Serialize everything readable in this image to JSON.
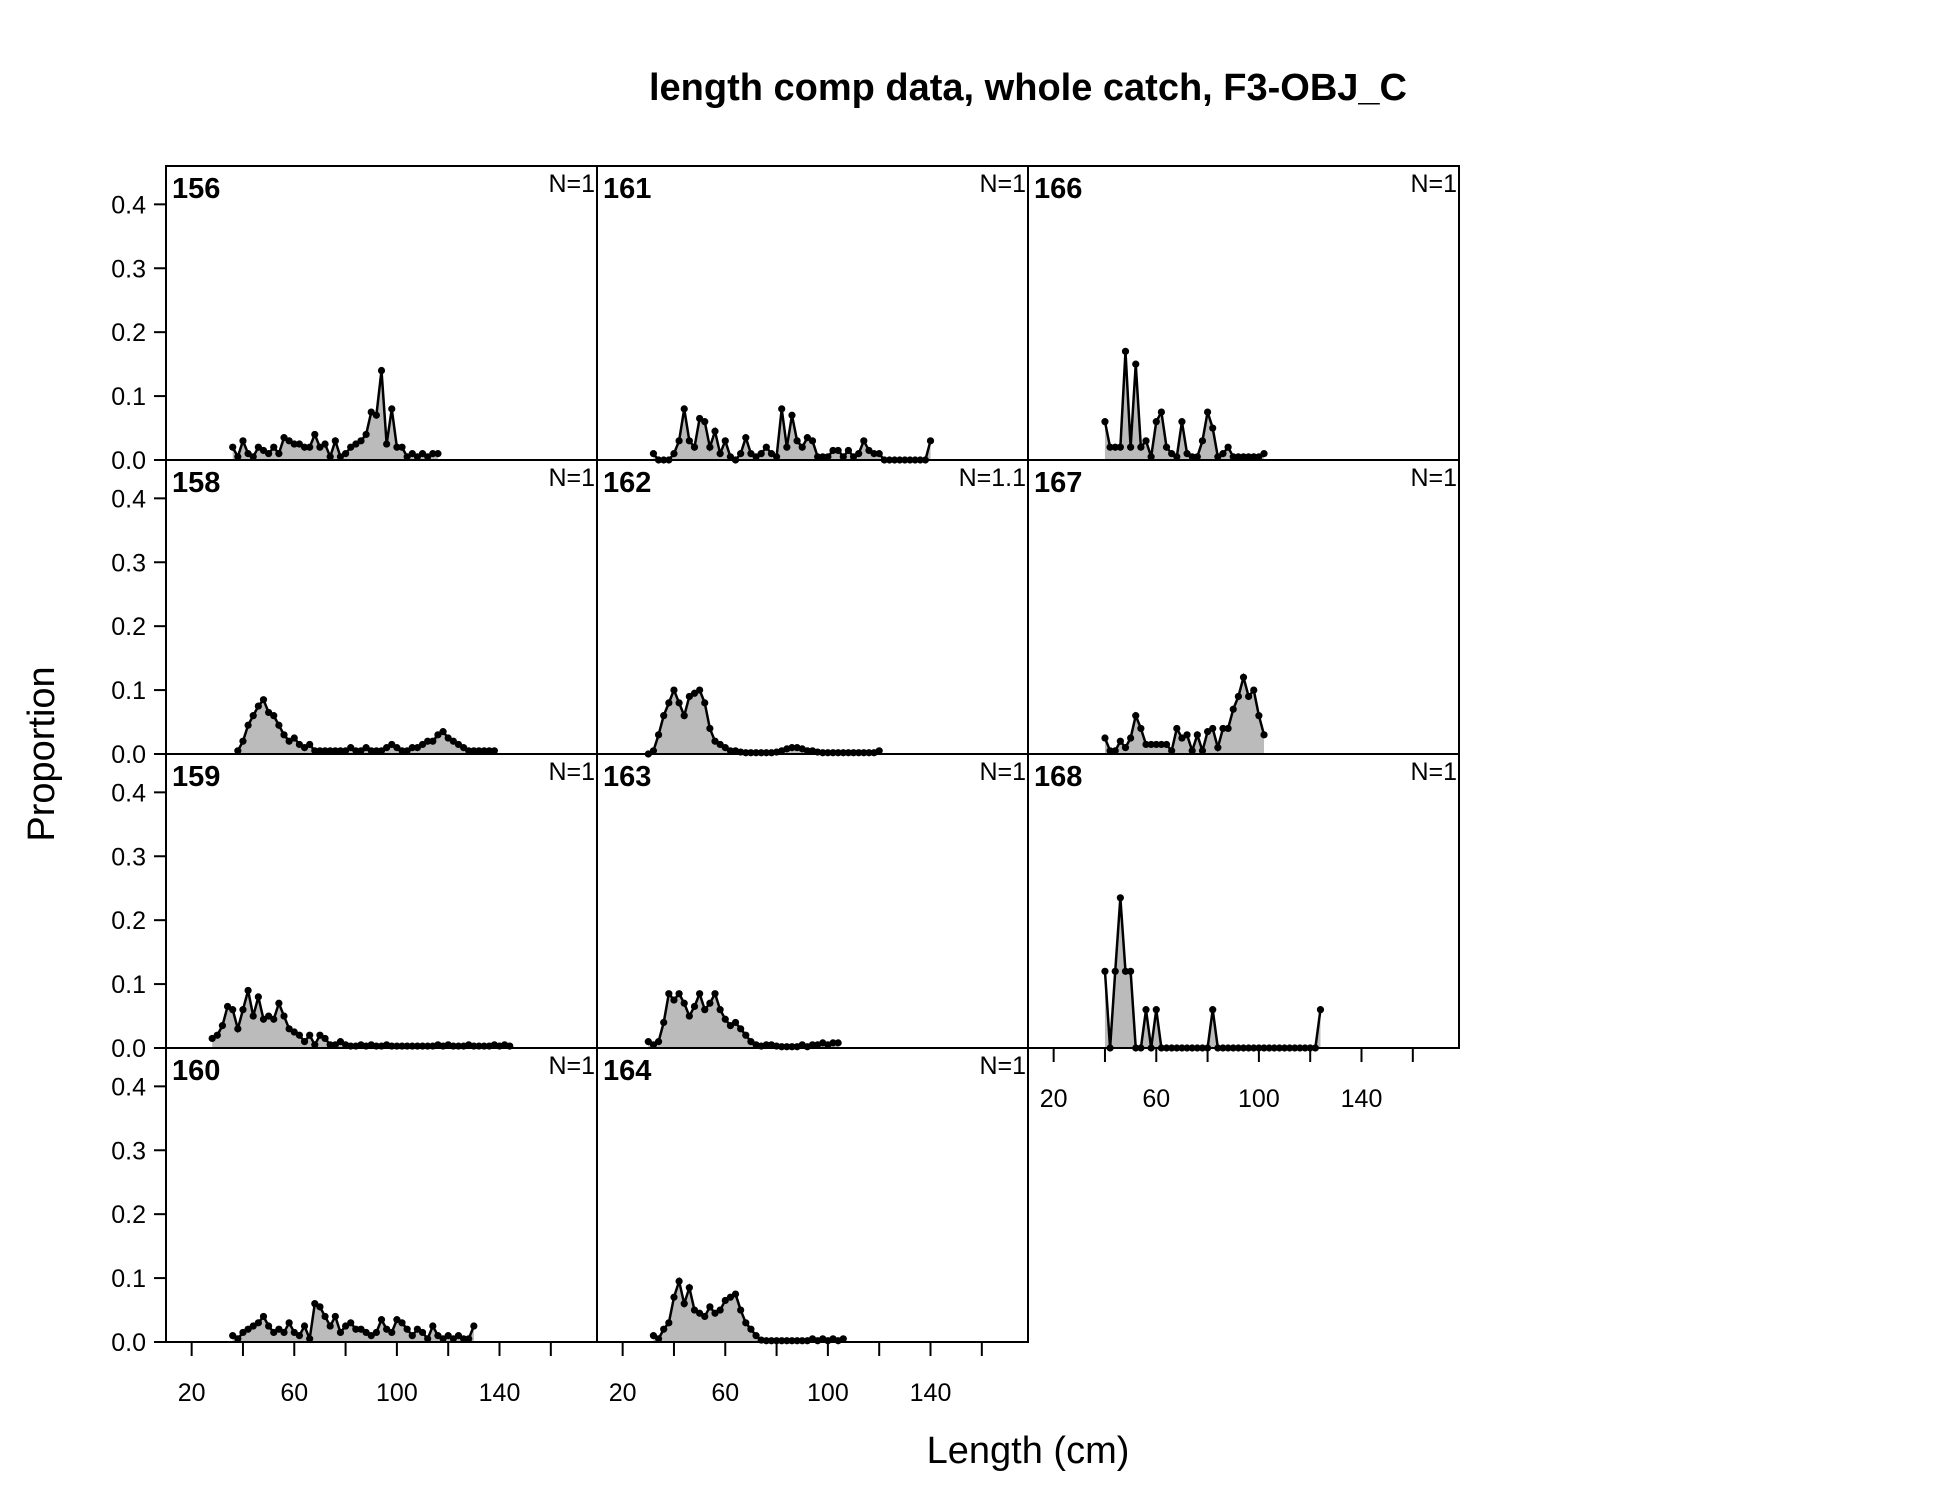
{
  "chart_data": {
    "type": "line",
    "title": "length comp data, whole catch, F3-OBJ_C",
    "xlabel": "Length (cm)",
    "ylabel": "Proportion",
    "xlim": [
      10,
      178
    ],
    "ylim": [
      0,
      0.46
    ],
    "xticks": [
      20,
      60,
      100,
      140
    ],
    "xminorticks": [
      40,
      80,
      120,
      160
    ],
    "yticks": [
      {
        "value": 0,
        "label": "0.0"
      },
      0.1,
      0.2,
      0.3,
      0.4
    ],
    "fill_color": "#bbbbbb",
    "line_color": "#000000",
    "panels": [
      {
        "label": "156",
        "n_label": "N=1",
        "x": [
          36,
          38,
          40,
          42,
          44,
          46,
          48,
          50,
          52,
          54,
          56,
          58,
          60,
          62,
          64,
          66,
          68,
          70,
          72,
          74,
          76,
          78,
          80,
          82,
          84,
          86,
          88,
          90,
          92,
          94,
          96,
          98,
          100,
          102,
          104,
          106,
          108,
          110,
          112,
          114,
          116
        ],
        "values": [
          0.02,
          0.005,
          0.03,
          0.01,
          0.005,
          0.02,
          0.015,
          0.01,
          0.02,
          0.01,
          0.035,
          0.03,
          0.025,
          0.025,
          0.02,
          0.02,
          0.04,
          0.02,
          0.025,
          0.005,
          0.03,
          0.005,
          0.01,
          0.02,
          0.025,
          0.03,
          0.04,
          0.075,
          0.07,
          0.14,
          0.025,
          0.08,
          0.02,
          0.02,
          0.005,
          0.01,
          0.005,
          0.01,
          0.005,
          0.01,
          0.01
        ]
      },
      {
        "label": "158",
        "n_label": "N=1",
        "x": [
          38,
          40,
          42,
          44,
          46,
          48,
          50,
          52,
          54,
          56,
          58,
          60,
          62,
          64,
          66,
          68,
          70,
          72,
          74,
          76,
          78,
          80,
          82,
          84,
          86,
          88,
          90,
          92,
          94,
          96,
          98,
          100,
          102,
          104,
          106,
          108,
          110,
          112,
          114,
          116,
          118,
          120,
          122,
          124,
          126,
          128,
          130,
          132,
          134,
          136,
          138
        ],
        "values": [
          0.005,
          0.02,
          0.045,
          0.06,
          0.075,
          0.085,
          0.065,
          0.06,
          0.045,
          0.03,
          0.02,
          0.025,
          0.015,
          0.01,
          0.015,
          0.005,
          0.005,
          0.005,
          0.005,
          0.005,
          0.005,
          0.005,
          0.01,
          0.005,
          0.005,
          0.01,
          0.005,
          0.005,
          0.005,
          0.01,
          0.015,
          0.01,
          0.005,
          0.005,
          0.01,
          0.01,
          0.015,
          0.02,
          0.02,
          0.03,
          0.035,
          0.025,
          0.02,
          0.015,
          0.01,
          0.005,
          0.005,
          0.005,
          0.005,
          0.005,
          0.005
        ]
      },
      {
        "label": "159",
        "n_label": "N=1",
        "x": [
          28,
          30,
          32,
          34,
          36,
          38,
          40,
          42,
          44,
          46,
          48,
          50,
          52,
          54,
          56,
          58,
          60,
          62,
          64,
          66,
          68,
          70,
          72,
          74,
          76,
          78,
          80,
          82,
          84,
          86,
          88,
          90,
          92,
          94,
          96,
          98,
          100,
          102,
          104,
          106,
          108,
          110,
          112,
          114,
          116,
          118,
          120,
          122,
          124,
          126,
          128,
          130,
          132,
          134,
          136,
          138,
          140,
          142,
          144
        ],
        "values": [
          0.015,
          0.02,
          0.035,
          0.065,
          0.06,
          0.03,
          0.06,
          0.09,
          0.05,
          0.08,
          0.045,
          0.05,
          0.045,
          0.07,
          0.05,
          0.03,
          0.025,
          0.02,
          0.01,
          0.02,
          0.005,
          0.02,
          0.015,
          0.005,
          0.005,
          0.01,
          0.005,
          0.003,
          0.003,
          0.005,
          0.003,
          0.005,
          0.003,
          0.003,
          0.005,
          0.003,
          0.003,
          0.003,
          0.003,
          0.003,
          0.003,
          0.003,
          0.003,
          0.003,
          0.005,
          0.003,
          0.005,
          0.003,
          0.003,
          0.003,
          0.005,
          0.003,
          0.003,
          0.003,
          0.003,
          0.005,
          0.003,
          0.005,
          0.003
        ]
      },
      {
        "label": "160",
        "n_label": "N=1",
        "x": [
          36,
          38,
          40,
          42,
          44,
          46,
          48,
          50,
          52,
          54,
          56,
          58,
          60,
          62,
          64,
          66,
          68,
          70,
          72,
          74,
          76,
          78,
          80,
          82,
          84,
          86,
          88,
          90,
          92,
          94,
          96,
          98,
          100,
          102,
          104,
          106,
          108,
          110,
          112,
          114,
          116,
          118,
          120,
          122,
          124,
          126,
          128,
          130
        ],
        "values": [
          0.01,
          0.005,
          0.015,
          0.02,
          0.025,
          0.03,
          0.04,
          0.025,
          0.015,
          0.02,
          0.015,
          0.03,
          0.015,
          0.01,
          0.025,
          0.005,
          0.06,
          0.055,
          0.04,
          0.025,
          0.04,
          0.015,
          0.025,
          0.03,
          0.02,
          0.02,
          0.015,
          0.01,
          0.015,
          0.035,
          0.02,
          0.015,
          0.035,
          0.03,
          0.02,
          0.01,
          0.02,
          0.015,
          0.005,
          0.025,
          0.01,
          0.005,
          0.01,
          0.005,
          0.01,
          0.005,
          0.005,
          0.025
        ]
      },
      {
        "label": "161",
        "n_label": "N=1",
        "x": [
          32,
          34,
          36,
          38,
          40,
          42,
          44,
          46,
          48,
          50,
          52,
          54,
          56,
          58,
          60,
          62,
          64,
          66,
          68,
          70,
          72,
          74,
          76,
          78,
          80,
          82,
          84,
          86,
          88,
          90,
          92,
          94,
          96,
          98,
          100,
          102,
          104,
          106,
          108,
          110,
          112,
          114,
          116,
          118,
          120,
          122,
          124,
          126,
          128,
          130,
          132,
          134,
          136,
          138,
          140
        ],
        "values": [
          0.01,
          0,
          0,
          0,
          0.01,
          0.03,
          0.08,
          0.03,
          0.02,
          0.065,
          0.06,
          0.02,
          0.045,
          0.01,
          0.03,
          0.005,
          0,
          0.01,
          0.035,
          0.01,
          0.005,
          0.01,
          0.02,
          0.01,
          0.005,
          0.08,
          0.02,
          0.07,
          0.03,
          0.02,
          0.035,
          0.03,
          0.005,
          0.005,
          0.005,
          0.015,
          0.015,
          0.005,
          0.015,
          0.005,
          0.01,
          0.03,
          0.015,
          0.01,
          0.01,
          0,
          0,
          0,
          0,
          0,
          0,
          0,
          0,
          0,
          0.03
        ]
      },
      {
        "label": "162",
        "n_label": "N=1.1",
        "x": [
          30,
          32,
          34,
          36,
          38,
          40,
          42,
          44,
          46,
          48,
          50,
          52,
          54,
          56,
          58,
          60,
          62,
          64,
          66,
          68,
          70,
          72,
          74,
          76,
          78,
          80,
          82,
          84,
          86,
          88,
          90,
          92,
          94,
          96,
          98,
          100,
          102,
          104,
          106,
          108,
          110,
          112,
          114,
          116,
          118,
          120
        ],
        "values": [
          0,
          0.005,
          0.03,
          0.06,
          0.08,
          0.1,
          0.08,
          0.06,
          0.09,
          0.095,
          0.1,
          0.08,
          0.04,
          0.02,
          0.015,
          0.01,
          0.005,
          0.005,
          0.003,
          0.002,
          0.002,
          0.002,
          0.002,
          0.002,
          0.002,
          0.003,
          0.005,
          0.008,
          0.01,
          0.01,
          0.008,
          0.005,
          0.005,
          0.003,
          0.002,
          0.002,
          0.002,
          0.002,
          0.002,
          0.002,
          0.002,
          0.002,
          0.002,
          0.002,
          0.002,
          0.005
        ]
      },
      {
        "label": "163",
        "n_label": "N=1",
        "x": [
          30,
          32,
          34,
          36,
          38,
          40,
          42,
          44,
          46,
          48,
          50,
          52,
          54,
          56,
          58,
          60,
          62,
          64,
          66,
          68,
          70,
          72,
          74,
          76,
          78,
          80,
          82,
          84,
          86,
          88,
          90,
          92,
          94,
          96,
          98,
          100,
          102,
          104
        ],
        "values": [
          0.01,
          0.005,
          0.01,
          0.04,
          0.085,
          0.075,
          0.085,
          0.07,
          0.05,
          0.065,
          0.085,
          0.06,
          0.07,
          0.085,
          0.06,
          0.045,
          0.035,
          0.04,
          0.03,
          0.02,
          0.01,
          0.005,
          0.003,
          0.005,
          0.005,
          0.003,
          0.002,
          0.002,
          0.002,
          0.002,
          0.005,
          0.002,
          0.005,
          0.005,
          0.008,
          0.005,
          0.008,
          0.008
        ]
      },
      {
        "label": "164",
        "n_label": "N=1",
        "x": [
          32,
          34,
          36,
          38,
          40,
          42,
          44,
          46,
          48,
          50,
          52,
          54,
          56,
          58,
          60,
          62,
          64,
          66,
          68,
          70,
          72,
          74,
          76,
          78,
          80,
          82,
          84,
          86,
          88,
          90,
          92,
          94,
          96,
          98,
          100,
          102,
          104,
          106
        ],
        "values": [
          0.01,
          0.005,
          0.02,
          0.03,
          0.07,
          0.095,
          0.06,
          0.085,
          0.05,
          0.045,
          0.04,
          0.055,
          0.045,
          0.05,
          0.065,
          0.07,
          0.075,
          0.05,
          0.03,
          0.02,
          0.01,
          0.003,
          0.002,
          0.002,
          0.002,
          0.002,
          0.002,
          0.002,
          0.002,
          0.002,
          0.002,
          0.005,
          0.002,
          0.005,
          0.002,
          0.005,
          0.002,
          0.005
        ]
      },
      {
        "label": "166",
        "n_label": "N=1",
        "x": [
          40,
          42,
          44,
          46,
          48,
          50,
          52,
          54,
          56,
          58,
          60,
          62,
          64,
          66,
          68,
          70,
          72,
          74,
          76,
          78,
          80,
          82,
          84,
          86,
          88,
          90,
          92,
          94,
          96,
          98,
          100,
          102
        ],
        "values": [
          0.06,
          0.02,
          0.02,
          0.02,
          0.17,
          0.02,
          0.15,
          0.02,
          0.03,
          0.005,
          0.06,
          0.075,
          0.02,
          0.01,
          0.005,
          0.06,
          0.01,
          0.005,
          0.005,
          0.03,
          0.075,
          0.05,
          0.005,
          0.01,
          0.02,
          0.005,
          0.005,
          0.005,
          0.005,
          0.005,
          0.005,
          0.01
        ]
      },
      {
        "label": "167",
        "n_label": "N=1",
        "x": [
          40,
          42,
          44,
          46,
          48,
          50,
          52,
          54,
          56,
          58,
          60,
          62,
          64,
          66,
          68,
          70,
          72,
          74,
          76,
          78,
          80,
          82,
          84,
          86,
          88,
          90,
          92,
          94,
          96,
          98,
          100,
          102
        ],
        "values": [
          0.025,
          0.005,
          0.005,
          0.02,
          0.01,
          0.025,
          0.06,
          0.04,
          0.015,
          0.015,
          0.015,
          0.015,
          0.015,
          0.005,
          0.04,
          0.025,
          0.03,
          0.005,
          0.03,
          0.005,
          0.035,
          0.04,
          0.01,
          0.04,
          0.04,
          0.07,
          0.09,
          0.12,
          0.09,
          0.1,
          0.06,
          0.03
        ]
      },
      {
        "label": "168",
        "n_label": "N=1",
        "x": [
          40,
          42,
          44,
          46,
          48,
          50,
          52,
          54,
          56,
          58,
          60,
          62,
          64,
          66,
          68,
          70,
          72,
          74,
          76,
          78,
          80,
          82,
          84,
          86,
          88,
          90,
          92,
          94,
          96,
          98,
          100,
          102,
          104,
          106,
          108,
          110,
          112,
          114,
          116,
          118,
          120,
          122,
          124
        ],
        "values": [
          0.12,
          0,
          0.12,
          0.235,
          0.12,
          0.12,
          0,
          0,
          0.06,
          0,
          0.06,
          0,
          0,
          0,
          0,
          0,
          0,
          0,
          0,
          0,
          0,
          0.06,
          0,
          0,
          0,
          0,
          0,
          0,
          0,
          0,
          0,
          0,
          0,
          0,
          0,
          0,
          0,
          0,
          0,
          0,
          0,
          0,
          0.06
        ]
      }
    ]
  }
}
